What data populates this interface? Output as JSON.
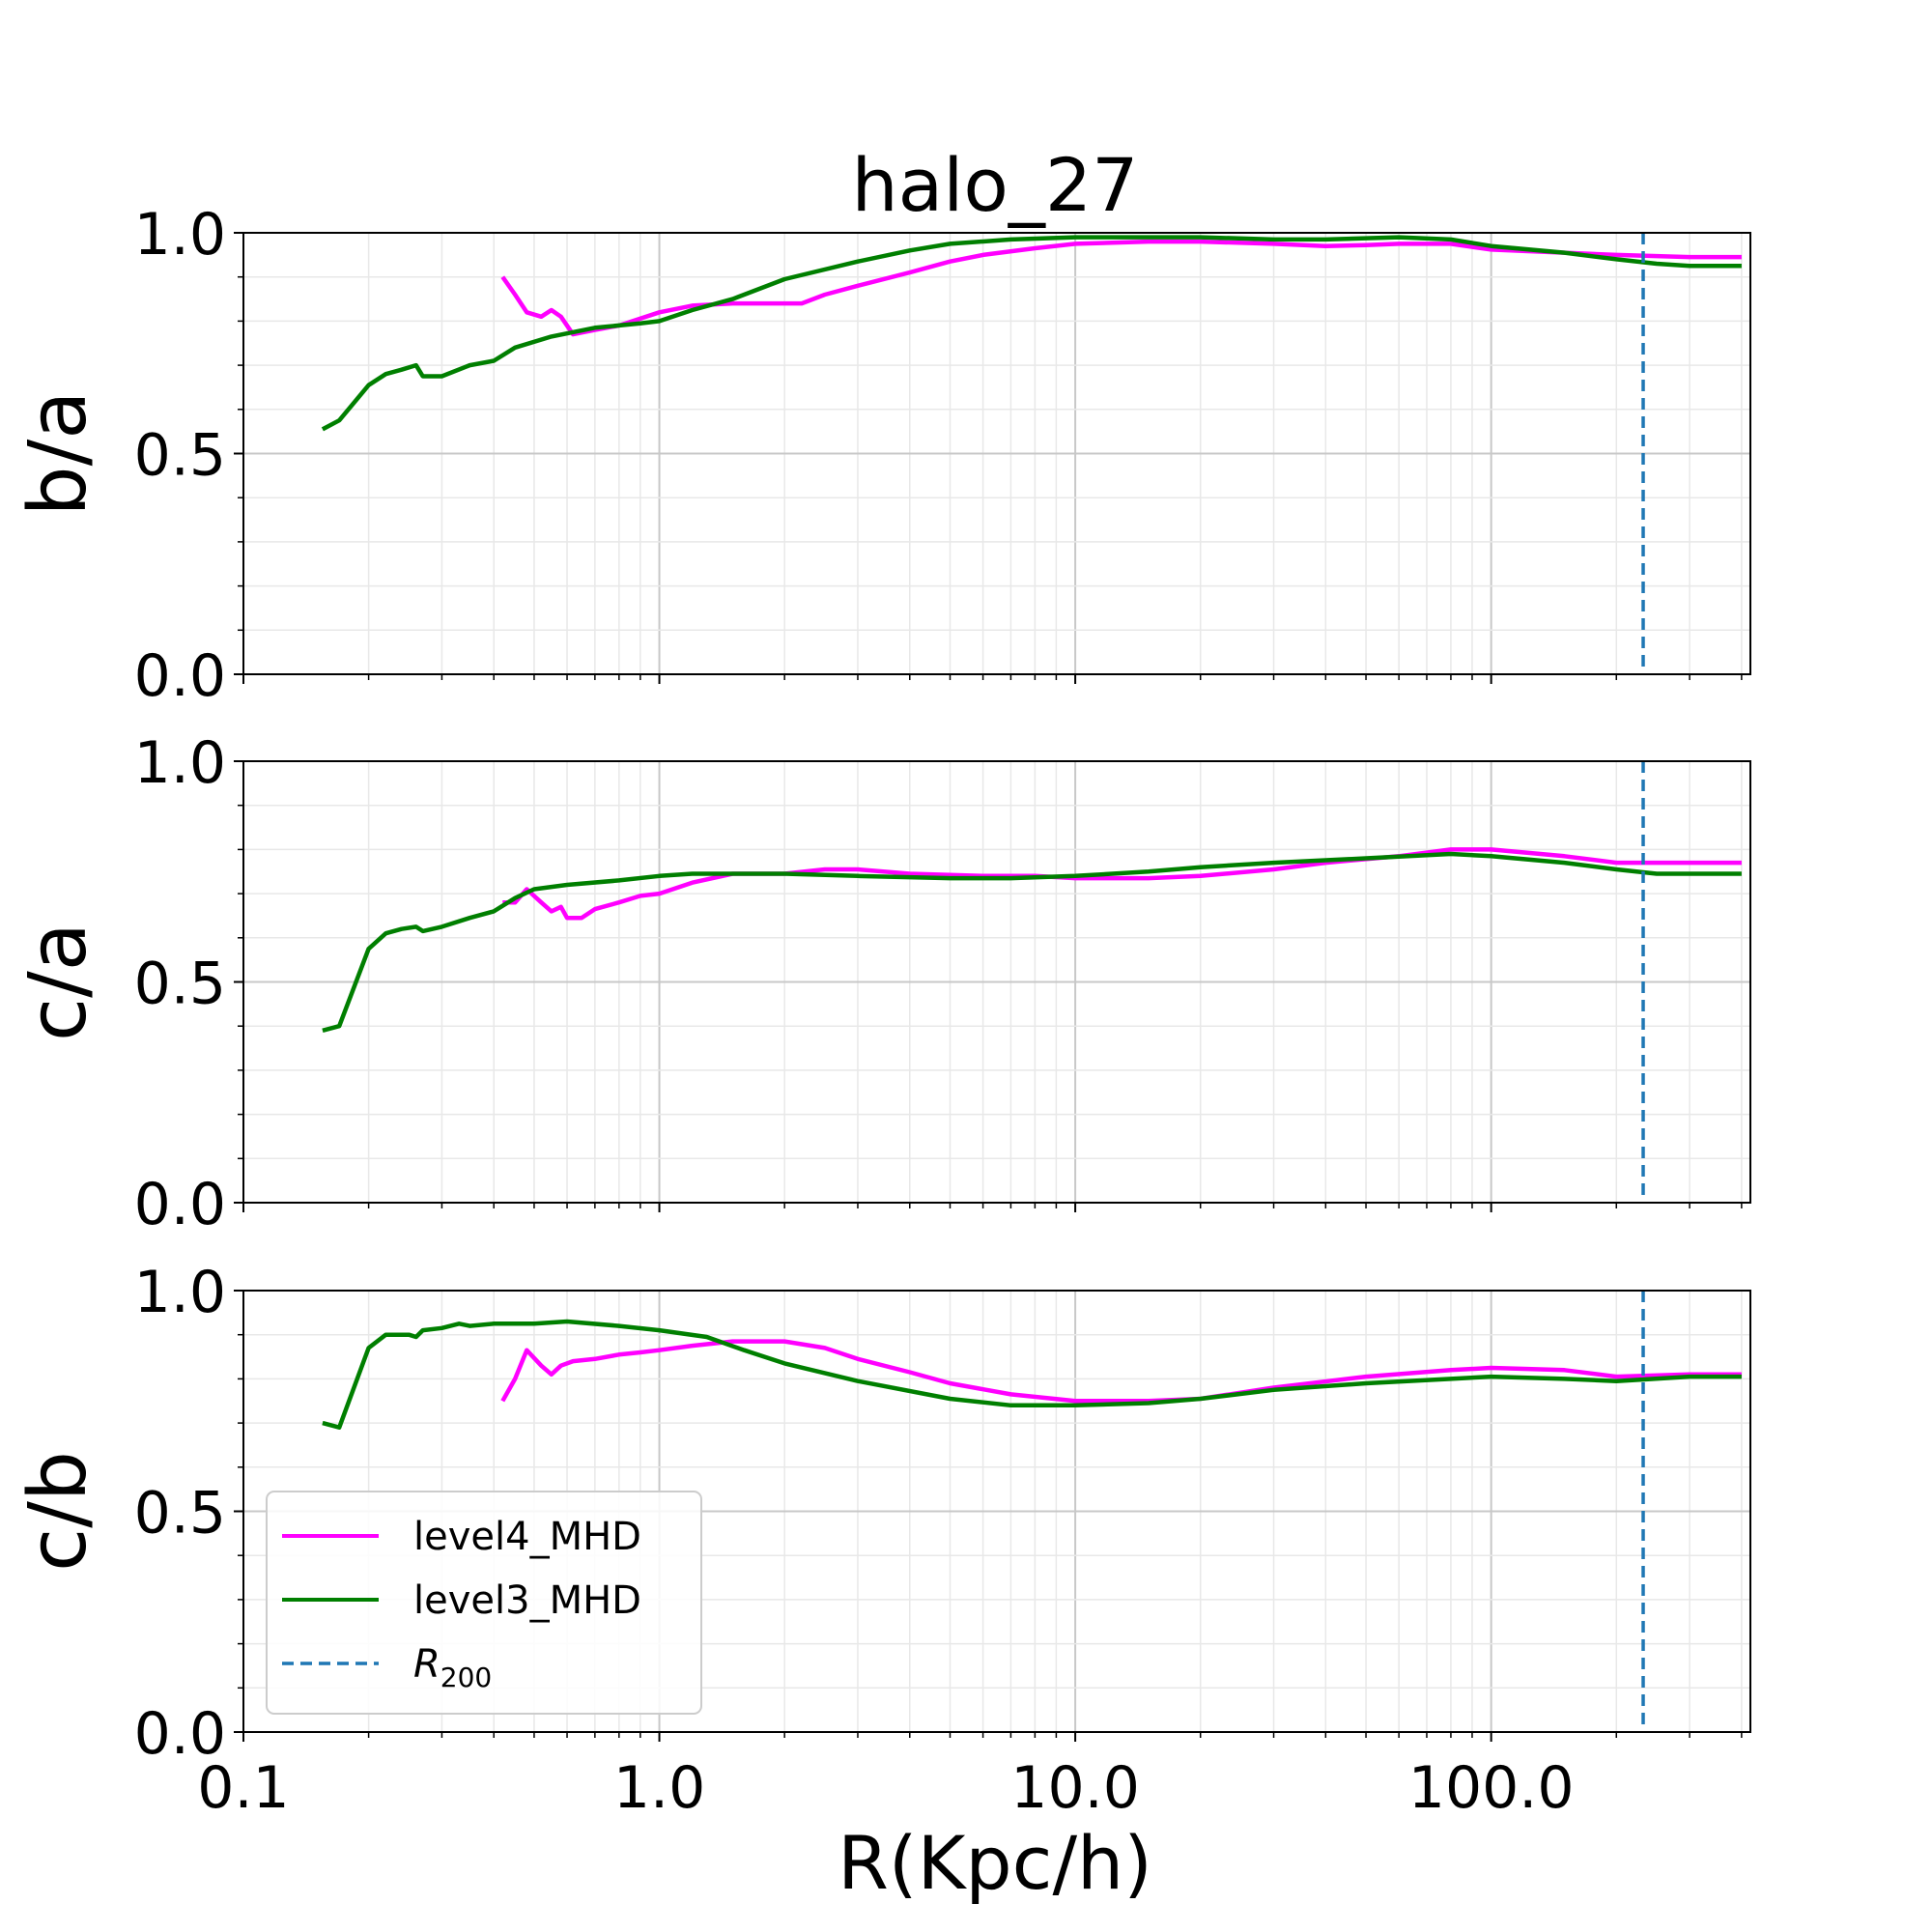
{
  "figure": {
    "title": "halo_27",
    "xlabel": "R(Kpc/h)"
  },
  "legend": {
    "placement": "lower-left",
    "entries": [
      {
        "label": "level4_MHD",
        "color": "#ff00ff",
        "style": "solid"
      },
      {
        "label": "level3_MHD",
        "color": "#007f00",
        "style": "solid"
      },
      {
        "label_main": "R",
        "label_sub": "200",
        "color": "#1f77b4",
        "style": "dashed"
      }
    ]
  },
  "chart_data": [
    {
      "type": "line",
      "ylabel": "b/a",
      "xscale": "log",
      "xlim": [
        0.1,
        420
      ],
      "ylim": [
        0,
        1
      ],
      "yticks": [
        "0.0",
        "0.5",
        "1.0"
      ],
      "grid": true,
      "r200": 232,
      "series": [
        {
          "name": "level4_MHD",
          "color": "#ff00ff",
          "x": [
            0.42,
            0.45,
            0.48,
            0.52,
            0.55,
            0.58,
            0.62,
            0.7,
            0.8,
            1.0,
            1.2,
            1.5,
            2.0,
            2.2,
            2.5,
            3,
            4,
            5,
            6,
            8,
            10,
            15,
            20,
            30,
            40,
            50,
            60,
            80,
            100,
            150,
            200,
            300,
            400
          ],
          "y": [
            0.9,
            0.86,
            0.82,
            0.81,
            0.825,
            0.81,
            0.77,
            0.78,
            0.79,
            0.82,
            0.835,
            0.84,
            0.84,
            0.84,
            0.86,
            0.88,
            0.91,
            0.935,
            0.95,
            0.965,
            0.975,
            0.98,
            0.98,
            0.975,
            0.97,
            0.972,
            0.975,
            0.975,
            0.962,
            0.955,
            0.95,
            0.945,
            0.945
          ]
        },
        {
          "name": "level3_MHD",
          "color": "#007f00",
          "x": [
            0.155,
            0.17,
            0.2,
            0.22,
            0.24,
            0.26,
            0.27,
            0.3,
            0.35,
            0.4,
            0.45,
            0.55,
            0.7,
            0.9,
            1.0,
            1.2,
            1.5,
            2.0,
            3,
            4,
            5,
            7,
            10,
            15,
            20,
            30,
            40,
            60,
            80,
            100,
            150,
            200,
            250,
            300,
            400
          ],
          "y": [
            0.555,
            0.575,
            0.655,
            0.68,
            0.69,
            0.7,
            0.675,
            0.675,
            0.7,
            0.71,
            0.74,
            0.765,
            0.785,
            0.795,
            0.8,
            0.825,
            0.85,
            0.895,
            0.935,
            0.96,
            0.975,
            0.985,
            0.99,
            0.99,
            0.99,
            0.985,
            0.985,
            0.99,
            0.985,
            0.97,
            0.955,
            0.94,
            0.93,
            0.925,
            0.925
          ]
        }
      ]
    },
    {
      "type": "line",
      "ylabel": "c/a",
      "xscale": "log",
      "xlim": [
        0.1,
        420
      ],
      "ylim": [
        0,
        1
      ],
      "yticks": [
        "0.0",
        "0.5",
        "1.0"
      ],
      "grid": true,
      "r200": 232,
      "series": [
        {
          "name": "level4_MHD",
          "color": "#ff00ff",
          "x": [
            0.42,
            0.45,
            0.48,
            0.52,
            0.55,
            0.58,
            0.6,
            0.65,
            0.7,
            0.8,
            0.9,
            1.0,
            1.2,
            1.5,
            2.0,
            2.5,
            3,
            4,
            6,
            8,
            10,
            15,
            20,
            30,
            40,
            60,
            80,
            100,
            150,
            200,
            300,
            400
          ],
          "y": [
            0.68,
            0.68,
            0.71,
            0.68,
            0.66,
            0.67,
            0.645,
            0.645,
            0.665,
            0.68,
            0.695,
            0.7,
            0.725,
            0.745,
            0.745,
            0.755,
            0.755,
            0.745,
            0.74,
            0.74,
            0.735,
            0.735,
            0.74,
            0.755,
            0.77,
            0.785,
            0.8,
            0.8,
            0.785,
            0.77,
            0.77,
            0.77
          ]
        },
        {
          "name": "level3_MHD",
          "color": "#007f00",
          "x": [
            0.155,
            0.17,
            0.2,
            0.22,
            0.24,
            0.26,
            0.27,
            0.3,
            0.35,
            0.4,
            0.45,
            0.5,
            0.6,
            0.8,
            1.0,
            1.2,
            1.5,
            2.0,
            3,
            5,
            7,
            10,
            15,
            20,
            30,
            50,
            80,
            100,
            150,
            200,
            250,
            300,
            400
          ],
          "y": [
            0.39,
            0.4,
            0.575,
            0.61,
            0.62,
            0.625,
            0.615,
            0.625,
            0.645,
            0.66,
            0.69,
            0.71,
            0.72,
            0.73,
            0.74,
            0.745,
            0.745,
            0.745,
            0.74,
            0.735,
            0.735,
            0.74,
            0.75,
            0.76,
            0.77,
            0.78,
            0.79,
            0.785,
            0.77,
            0.755,
            0.745,
            0.745,
            0.745
          ]
        }
      ]
    },
    {
      "type": "line",
      "ylabel": "c/b",
      "xscale": "log",
      "xlim": [
        0.1,
        420
      ],
      "ylim": [
        0,
        1
      ],
      "yticks": [
        "0.0",
        "0.5",
        "1.0"
      ],
      "xticks": [
        "0.1",
        "1.0",
        "10.0",
        "100.0"
      ],
      "grid": true,
      "r200": 232,
      "series": [
        {
          "name": "level4_MHD",
          "color": "#ff00ff",
          "x": [
            0.42,
            0.45,
            0.48,
            0.52,
            0.55,
            0.58,
            0.62,
            0.7,
            0.8,
            0.9,
            1.0,
            1.2,
            1.5,
            2.0,
            2.5,
            3,
            4,
            5,
            7,
            10,
            15,
            20,
            30,
            50,
            80,
            100,
            150,
            200,
            300,
            400
          ],
          "y": [
            0.75,
            0.8,
            0.865,
            0.83,
            0.81,
            0.83,
            0.84,
            0.845,
            0.855,
            0.86,
            0.865,
            0.875,
            0.885,
            0.885,
            0.87,
            0.845,
            0.815,
            0.79,
            0.765,
            0.75,
            0.75,
            0.755,
            0.78,
            0.805,
            0.82,
            0.825,
            0.82,
            0.805,
            0.81,
            0.81
          ]
        },
        {
          "name": "level3_MHD",
          "color": "#007f00",
          "x": [
            0.155,
            0.17,
            0.2,
            0.22,
            0.25,
            0.26,
            0.27,
            0.3,
            0.33,
            0.35,
            0.4,
            0.5,
            0.6,
            0.8,
            1.0,
            1.3,
            1.6,
            2.0,
            3,
            5,
            7,
            10,
            15,
            20,
            30,
            50,
            80,
            100,
            150,
            200,
            300,
            400
          ],
          "y": [
            0.7,
            0.69,
            0.87,
            0.9,
            0.9,
            0.895,
            0.91,
            0.915,
            0.925,
            0.92,
            0.925,
            0.925,
            0.93,
            0.92,
            0.91,
            0.895,
            0.865,
            0.835,
            0.795,
            0.755,
            0.74,
            0.74,
            0.745,
            0.755,
            0.775,
            0.79,
            0.8,
            0.805,
            0.8,
            0.795,
            0.805,
            0.805
          ]
        }
      ]
    }
  ]
}
